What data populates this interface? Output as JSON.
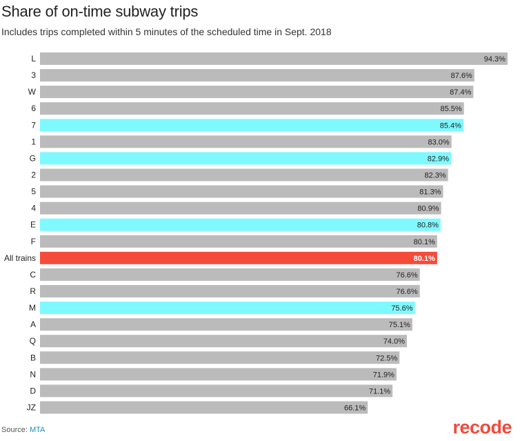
{
  "chart_data": {
    "type": "bar",
    "orientation": "horizontal",
    "title": "Share of on-time subway trips",
    "subtitle": "Includes trips completed within 5 minutes of the scheduled time in Sept. 2018",
    "categories": [
      "L",
      "3",
      "W",
      "6",
      "7",
      "1",
      "G",
      "2",
      "5",
      "4",
      "E",
      "F",
      "All trains",
      "C",
      "R",
      "M",
      "A",
      "Q",
      "B",
      "N",
      "D",
      "JZ"
    ],
    "values": [
      94.3,
      87.6,
      87.4,
      85.5,
      85.4,
      83.0,
      82.9,
      82.3,
      81.3,
      80.9,
      80.8,
      80.1,
      80.1,
      76.6,
      76.6,
      75.6,
      75.1,
      74.0,
      72.5,
      71.9,
      71.1,
      66.1
    ],
    "value_labels": [
      "94.3%",
      "87.6%",
      "87.4%",
      "85.5%",
      "85.4%",
      "83.0%",
      "82.9%",
      "82.3%",
      "81.3%",
      "80.9%",
      "80.8%",
      "80.1%",
      "80.1%",
      "76.6%",
      "76.6%",
      "75.6%",
      "75.1%",
      "74.0%",
      "72.5%",
      "71.9%",
      "71.1%",
      "66.1%"
    ],
    "highlight": {
      "teal": [
        "7",
        "G",
        "E",
        "M"
      ],
      "red": [
        "All trains"
      ]
    },
    "xlim": [
      0,
      95
    ],
    "grid": false,
    "legend": "none"
  },
  "colors": {
    "default_bar": "#bbbbbb",
    "teal_bar": "#7ef9ff",
    "red_bar": "#f44b3b",
    "logo": "#f04a3c",
    "source_link": "#1a8fbf"
  },
  "footer": {
    "source_prefix": "Source: ",
    "source_name": "MTA"
  },
  "brand": {
    "logo_text": "recode"
  }
}
